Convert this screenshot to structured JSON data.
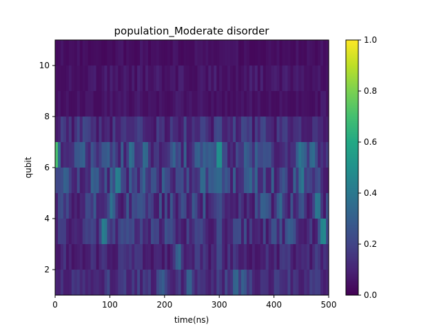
{
  "chart_data": {
    "type": "heatmap",
    "title": "population_Moderate disorder",
    "xlabel": "time(ns)",
    "ylabel": "qubit",
    "xlim": [
      0,
      500
    ],
    "ylim": [
      1,
      11
    ],
    "x_ticks": [
      0,
      100,
      200,
      300,
      400,
      500
    ],
    "y_ticks": [
      2,
      4,
      6,
      8,
      10
    ],
    "colorbar": {
      "range": [
        0,
        1
      ],
      "ticks": [
        "0.0",
        "0.2",
        "0.4",
        "0.6",
        "0.8",
        "1.0"
      ],
      "colormap": "viridis"
    },
    "time_step_ns": 5,
    "rows": [
      {
        "qubit": 1,
        "y_range": [
          1,
          2
        ],
        "seed": 11,
        "base": 0.08,
        "amp": 0.14,
        "peaks": [
          [
            40,
            0.2
          ],
          [
            120,
            0.2
          ],
          [
            195,
            0.35
          ],
          [
            245,
            0.38
          ],
          [
            330,
            0.42
          ],
          [
            345,
            0.38
          ],
          [
            440,
            0.2
          ],
          [
            480,
            0.24
          ]
        ]
      },
      {
        "qubit": 2,
        "y_range": [
          2,
          3
        ],
        "seed": 23,
        "base": 0.05,
        "amp": 0.14,
        "peaks": [
          [
            15,
            0.14
          ],
          [
            90,
            0.18
          ],
          [
            150,
            0.18
          ],
          [
            225,
            0.4
          ],
          [
            260,
            0.22
          ],
          [
            300,
            0.25
          ],
          [
            330,
            0.2
          ],
          [
            420,
            0.2
          ],
          [
            480,
            0.22
          ]
        ]
      },
      {
        "qubit": 3,
        "y_range": [
          3,
          4
        ],
        "seed": 37,
        "base": 0.06,
        "amp": 0.2,
        "peaks": [
          [
            15,
            0.22
          ],
          [
            60,
            0.2
          ],
          [
            90,
            0.52
          ],
          [
            140,
            0.25
          ],
          [
            205,
            0.3
          ],
          [
            260,
            0.25
          ],
          [
            300,
            0.28
          ],
          [
            330,
            0.25
          ],
          [
            400,
            0.3
          ],
          [
            430,
            0.35
          ],
          [
            490,
            0.55
          ]
        ]
      },
      {
        "qubit": 4,
        "y_range": [
          4,
          5
        ],
        "seed": 41,
        "base": 0.06,
        "amp": 0.22,
        "peaks": [
          [
            20,
            0.2
          ],
          [
            60,
            0.25
          ],
          [
            105,
            0.42
          ],
          [
            160,
            0.3
          ],
          [
            255,
            0.3
          ],
          [
            300,
            0.3
          ],
          [
            380,
            0.35
          ],
          [
            410,
            0.4
          ],
          [
            450,
            0.32
          ],
          [
            480,
            0.45
          ]
        ]
      },
      {
        "qubit": 5,
        "y_range": [
          5,
          6
        ],
        "seed": 53,
        "base": 0.07,
        "amp": 0.26,
        "peaks": [
          [
            5,
            0.3
          ],
          [
            20,
            0.42
          ],
          [
            75,
            0.38
          ],
          [
            115,
            0.48
          ],
          [
            180,
            0.35
          ],
          [
            230,
            0.3
          ],
          [
            270,
            0.38
          ],
          [
            300,
            0.48
          ],
          [
            355,
            0.42
          ],
          [
            415,
            0.3
          ],
          [
            450,
            0.45
          ],
          [
            480,
            0.3
          ]
        ]
      },
      {
        "qubit": 6,
        "y_range": [
          6,
          7
        ],
        "seed": 67,
        "base": 0.08,
        "amp": 0.24,
        "peaks": [
          [
            0,
            0.92
          ],
          [
            50,
            0.35
          ],
          [
            95,
            0.38
          ],
          [
            140,
            0.45
          ],
          [
            165,
            0.42
          ],
          [
            215,
            0.35
          ],
          [
            290,
            0.35
          ],
          [
            300,
            0.55
          ],
          [
            350,
            0.38
          ],
          [
            390,
            0.32
          ],
          [
            450,
            0.45
          ],
          [
            470,
            0.42
          ]
        ]
      },
      {
        "qubit": 7,
        "y_range": [
          7,
          8
        ],
        "seed": 71,
        "base": 0.05,
        "amp": 0.17,
        "peaks": [
          [
            15,
            0.24
          ],
          [
            55,
            0.26
          ],
          [
            150,
            0.22
          ],
          [
            270,
            0.25
          ],
          [
            300,
            0.28
          ],
          [
            350,
            0.22
          ],
          [
            380,
            0.28
          ],
          [
            420,
            0.22
          ],
          [
            475,
            0.2
          ]
        ]
      },
      {
        "qubit": 8,
        "y_range": [
          8,
          9
        ],
        "seed": 83,
        "base": 0.03,
        "amp": 0.06,
        "peaks": [
          [
            150,
            0.05
          ],
          [
            460,
            0.05
          ]
        ]
      },
      {
        "qubit": 9,
        "y_range": [
          9,
          10
        ],
        "seed": 97,
        "base": 0.03,
        "amp": 0.07,
        "peaks": [
          [
            180,
            0.06
          ],
          [
            440,
            0.1
          ]
        ]
      },
      {
        "qubit": 10,
        "y_range": [
          10,
          11
        ],
        "seed": 101,
        "base": 0.02,
        "amp": 0.05,
        "peaks": [
          [
            75,
            0.05
          ],
          [
            400,
            0.04
          ]
        ]
      }
    ]
  }
}
